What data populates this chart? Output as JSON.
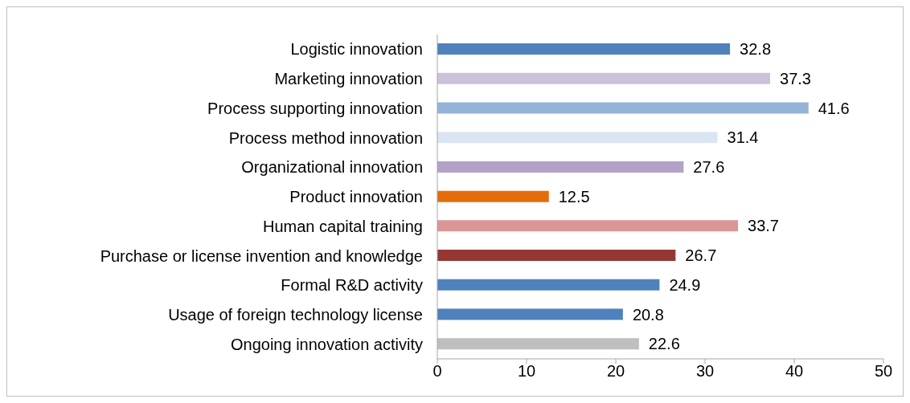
{
  "chart_data": {
    "type": "bar",
    "orientation": "horizontal",
    "categories": [
      "Logistic innovation",
      "Marketing innovation",
      "Process supporting innovation",
      "Process method innovation",
      "Organizational innovation",
      "Product innovation",
      "Human capital training",
      "Purchase or license invention and knowledge",
      "Formal R&D activity",
      "Usage of foreign technology license",
      "Ongoing innovation activity"
    ],
    "values": [
      32.8,
      37.3,
      41.6,
      31.4,
      27.6,
      12.5,
      33.7,
      26.7,
      24.9,
      20.8,
      22.6
    ],
    "colors": [
      "#4f81bd",
      "#ccc1da",
      "#95b3d7",
      "#dbe5f1",
      "#b3a2c7",
      "#e46c0a",
      "#d99694",
      "#953735",
      "#4f81bd",
      "#4f81bd",
      "#bfbfbf"
    ],
    "xlim": [
      0,
      50
    ],
    "xticks": [
      0,
      10,
      20,
      30,
      40,
      50
    ],
    "data_labels": true,
    "grid": false
  }
}
